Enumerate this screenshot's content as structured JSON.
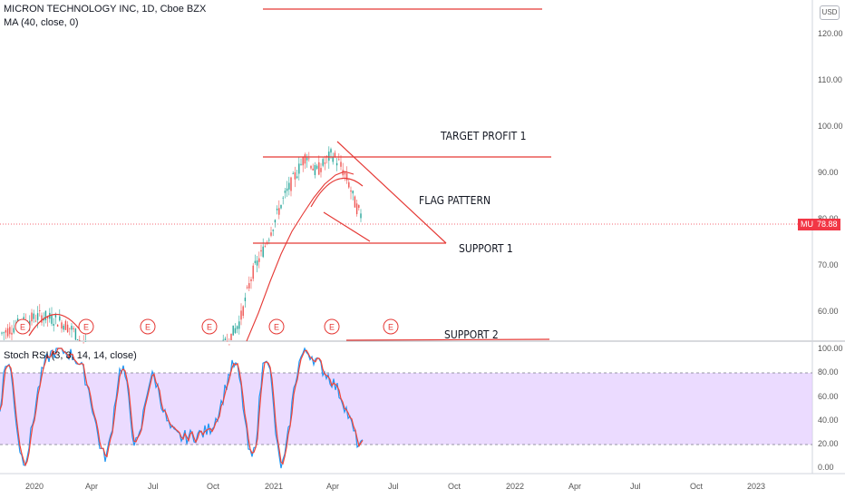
{
  "header": {
    "symbol_line": "MICRON TECHNOLOGY INC, 1D, Cboe BZX",
    "indicator": "MA (40, close, 0)"
  },
  "lower_pane": {
    "indicator": "Stoch RSI (3, 3, 14, 14, close)"
  },
  "currency_button": "USD",
  "price_tag": {
    "ticker": "MU",
    "price": "78.88"
  },
  "price_axis": [
    "120.00",
    "110.00",
    "100.00",
    "90.00",
    "80.00",
    "70.00",
    "60.00"
  ],
  "rsi_axis": [
    "100.00",
    "80.00",
    "60.00",
    "40.00",
    "20.00",
    "0.00"
  ],
  "time_axis": [
    "2020",
    "Apr",
    "Jul",
    "Oct",
    "2021",
    "Apr",
    "Jul",
    "Oct",
    "2022",
    "Apr",
    "Jul",
    "Oct",
    "2023"
  ],
  "earnings_marker": "E",
  "annotations": {
    "target": "TARGET PROFIT 1",
    "flag": "FLAG PATTERN",
    "support1": "SUPPORT 1",
    "support2": "SUPPORT 2"
  },
  "colors": {
    "drawing": "#e53935",
    "candle_up": "#26a69a",
    "candle_down": "#ef5350",
    "k_line": "#2196f3",
    "d_line": "#f44336",
    "rsi_band": "#e1c8ff",
    "tag": "#f23645"
  }
}
